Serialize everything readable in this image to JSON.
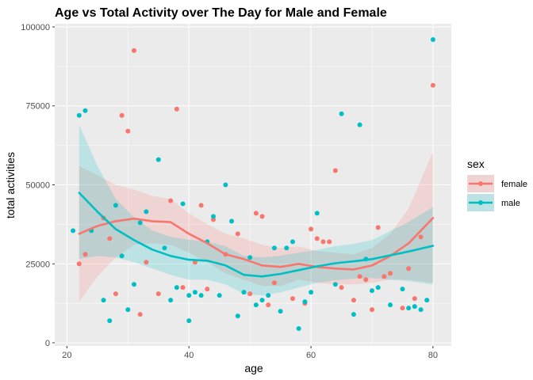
{
  "chart_data": {
    "type": "scatter",
    "title": "Age vs Total Activity over The Day for Male and Female",
    "xlabel": "age",
    "ylabel": "total activities",
    "xlim": [
      18,
      83
    ],
    "ylim": [
      -1000,
      101000
    ],
    "xticks": [
      20,
      40,
      60,
      80
    ],
    "yticks": [
      0,
      25000,
      50000,
      75000,
      100000
    ],
    "ytick_labels": [
      "0",
      "25000",
      "50000",
      "75000",
      "100000"
    ],
    "grid": true,
    "legend": {
      "title": "sex",
      "position": "right",
      "entries": [
        "female",
        "male"
      ]
    },
    "colors": {
      "female": "#F8766D",
      "male": "#00BFC4",
      "panel": "#EBEBEB",
      "grid": "#FFFFFF"
    },
    "series": [
      {
        "name": "female",
        "points": [
          [
            22,
            25000
          ],
          [
            23,
            28000
          ],
          [
            26,
            39500
          ],
          [
            27,
            33000
          ],
          [
            28,
            15500
          ],
          [
            29,
            72000
          ],
          [
            30,
            67000
          ],
          [
            31,
            92500
          ],
          [
            32,
            9000
          ],
          [
            33,
            25500
          ],
          [
            35,
            15500
          ],
          [
            37,
            45000
          ],
          [
            38,
            74000
          ],
          [
            39,
            17500
          ],
          [
            41,
            25500
          ],
          [
            42,
            43500
          ],
          [
            43,
            17000
          ],
          [
            44,
            39000
          ],
          [
            46,
            28000
          ],
          [
            48,
            34500
          ],
          [
            50,
            15500
          ],
          [
            51,
            41000
          ],
          [
            52,
            40000
          ],
          [
            53,
            12000
          ],
          [
            54,
            19000
          ],
          [
            57,
            14000
          ],
          [
            59,
            12500
          ],
          [
            60,
            36000
          ],
          [
            61,
            33000
          ],
          [
            62,
            32000
          ],
          [
            63,
            32000
          ],
          [
            64,
            54500
          ],
          [
            65,
            17500
          ],
          [
            67,
            13500
          ],
          [
            68,
            21000
          ],
          [
            69,
            20000
          ],
          [
            70,
            10500
          ],
          [
            71,
            36500
          ],
          [
            72,
            21000
          ],
          [
            73,
            22000
          ],
          [
            75,
            11000
          ],
          [
            76,
            23500
          ],
          [
            77,
            14000
          ],
          [
            78,
            33500
          ],
          [
            80,
            81500
          ]
        ],
        "smooth": [
          [
            22,
            34500
          ],
          [
            25,
            37000
          ],
          [
            28,
            38500
          ],
          [
            31,
            39300
          ],
          [
            34,
            38500
          ],
          [
            37,
            38200
          ],
          [
            40,
            34500
          ],
          [
            43,
            31500
          ],
          [
            46,
            28000
          ],
          [
            49,
            26500
          ],
          [
            52,
            24500
          ],
          [
            55,
            24000
          ],
          [
            58,
            25000
          ],
          [
            61,
            24000
          ],
          [
            64,
            23500
          ],
          [
            67,
            23200
          ],
          [
            70,
            24500
          ],
          [
            73,
            27500
          ],
          [
            76,
            31500
          ],
          [
            80,
            39500
          ]
        ],
        "ci_lower": [
          [
            22,
            13000
          ],
          [
            25,
            21000
          ],
          [
            28,
            27000
          ],
          [
            31,
            31000
          ],
          [
            34,
            31500
          ],
          [
            37,
            31000
          ],
          [
            40,
            28500
          ],
          [
            43,
            25500
          ],
          [
            46,
            22000
          ],
          [
            49,
            20000
          ],
          [
            52,
            18000
          ],
          [
            55,
            18000
          ],
          [
            58,
            20000
          ],
          [
            61,
            19000
          ],
          [
            64,
            18500
          ],
          [
            67,
            18500
          ],
          [
            70,
            19000
          ],
          [
            73,
            20000
          ],
          [
            76,
            20000
          ],
          [
            80,
            19000
          ]
        ],
        "ci_upper": [
          [
            22,
            56000
          ],
          [
            25,
            53000
          ],
          [
            28,
            50000
          ],
          [
            31,
            48500
          ],
          [
            34,
            46500
          ],
          [
            37,
            45500
          ],
          [
            40,
            41000
          ],
          [
            43,
            37500
          ],
          [
            46,
            34500
          ],
          [
            49,
            33000
          ],
          [
            52,
            31000
          ],
          [
            55,
            30000
          ],
          [
            58,
            30500
          ],
          [
            61,
            29000
          ],
          [
            64,
            28500
          ],
          [
            67,
            28000
          ],
          [
            70,
            30000
          ],
          [
            73,
            34500
          ],
          [
            76,
            42500
          ],
          [
            80,
            60500
          ]
        ]
      },
      {
        "name": "male",
        "points": [
          [
            21,
            35500
          ],
          [
            22,
            72000
          ],
          [
            23,
            73500
          ],
          [
            24,
            35500
          ],
          [
            26,
            13500
          ],
          [
            27,
            7000
          ],
          [
            28,
            43500
          ],
          [
            29,
            27500
          ],
          [
            30,
            10500
          ],
          [
            31,
            18500
          ],
          [
            32,
            38000
          ],
          [
            33,
            41500
          ],
          [
            35,
            58000
          ],
          [
            36,
            30000
          ],
          [
            37,
            13500
          ],
          [
            38,
            17500
          ],
          [
            39,
            44000
          ],
          [
            40,
            7000
          ],
          [
            40,
            15000
          ],
          [
            41,
            16000
          ],
          [
            42,
            15000
          ],
          [
            43,
            32000
          ],
          [
            44,
            40000
          ],
          [
            45,
            15000
          ],
          [
            46,
            50000
          ],
          [
            47,
            38500
          ],
          [
            48,
            8500
          ],
          [
            49,
            16000
          ],
          [
            50,
            27000
          ],
          [
            51,
            12000
          ],
          [
            52,
            13500
          ],
          [
            53,
            15000
          ],
          [
            54,
            30000
          ],
          [
            55,
            10000
          ],
          [
            56,
            30000
          ],
          [
            57,
            32000
          ],
          [
            58,
            4500
          ],
          [
            59,
            13000
          ],
          [
            60,
            16000
          ],
          [
            61,
            41000
          ],
          [
            64,
            18500
          ],
          [
            65,
            72500
          ],
          [
            67,
            9000
          ],
          [
            68,
            69000
          ],
          [
            69,
            26500
          ],
          [
            70,
            16500
          ],
          [
            71,
            17500
          ],
          [
            73,
            12000
          ],
          [
            75,
            17000
          ],
          [
            76,
            11000
          ],
          [
            77,
            11500
          ],
          [
            78,
            10500
          ],
          [
            79,
            13500
          ],
          [
            80,
            96000
          ]
        ],
        "smooth": [
          [
            22,
            47500
          ],
          [
            25,
            41500
          ],
          [
            28,
            36000
          ],
          [
            31,
            32500
          ],
          [
            34,
            29500
          ],
          [
            37,
            27500
          ],
          [
            40,
            26300
          ],
          [
            43,
            26000
          ],
          [
            46,
            24500
          ],
          [
            49,
            21500
          ],
          [
            52,
            21000
          ],
          [
            55,
            21800
          ],
          [
            58,
            23000
          ],
          [
            61,
            24200
          ],
          [
            64,
            25200
          ],
          [
            67,
            25800
          ],
          [
            70,
            26500
          ],
          [
            73,
            27700
          ],
          [
            76,
            28900
          ],
          [
            80,
            30700
          ]
        ],
        "ci_lower": [
          [
            22,
            26500
          ],
          [
            25,
            27500
          ],
          [
            28,
            27000
          ],
          [
            31,
            25500
          ],
          [
            34,
            23500
          ],
          [
            37,
            21500
          ],
          [
            40,
            20000
          ],
          [
            43,
            20000
          ],
          [
            46,
            18500
          ],
          [
            49,
            15500
          ],
          [
            52,
            15000
          ],
          [
            55,
            16000
          ],
          [
            58,
            17500
          ],
          [
            61,
            19000
          ],
          [
            64,
            19800
          ],
          [
            67,
            20300
          ],
          [
            70,
            20500
          ],
          [
            73,
            20000
          ],
          [
            76,
            19500
          ],
          [
            80,
            18500
          ]
        ],
        "ci_upper": [
          [
            22,
            69000
          ],
          [
            25,
            56000
          ],
          [
            28,
            45500
          ],
          [
            31,
            39800
          ],
          [
            34,
            35500
          ],
          [
            37,
            33500
          ],
          [
            40,
            32600
          ],
          [
            43,
            32000
          ],
          [
            46,
            30500
          ],
          [
            49,
            27500
          ],
          [
            52,
            27000
          ],
          [
            55,
            27600
          ],
          [
            58,
            28500
          ],
          [
            61,
            29400
          ],
          [
            64,
            30600
          ],
          [
            67,
            31300
          ],
          [
            70,
            32500
          ],
          [
            73,
            35400
          ],
          [
            76,
            38300
          ],
          [
            80,
            43000
          ]
        ]
      }
    ]
  }
}
